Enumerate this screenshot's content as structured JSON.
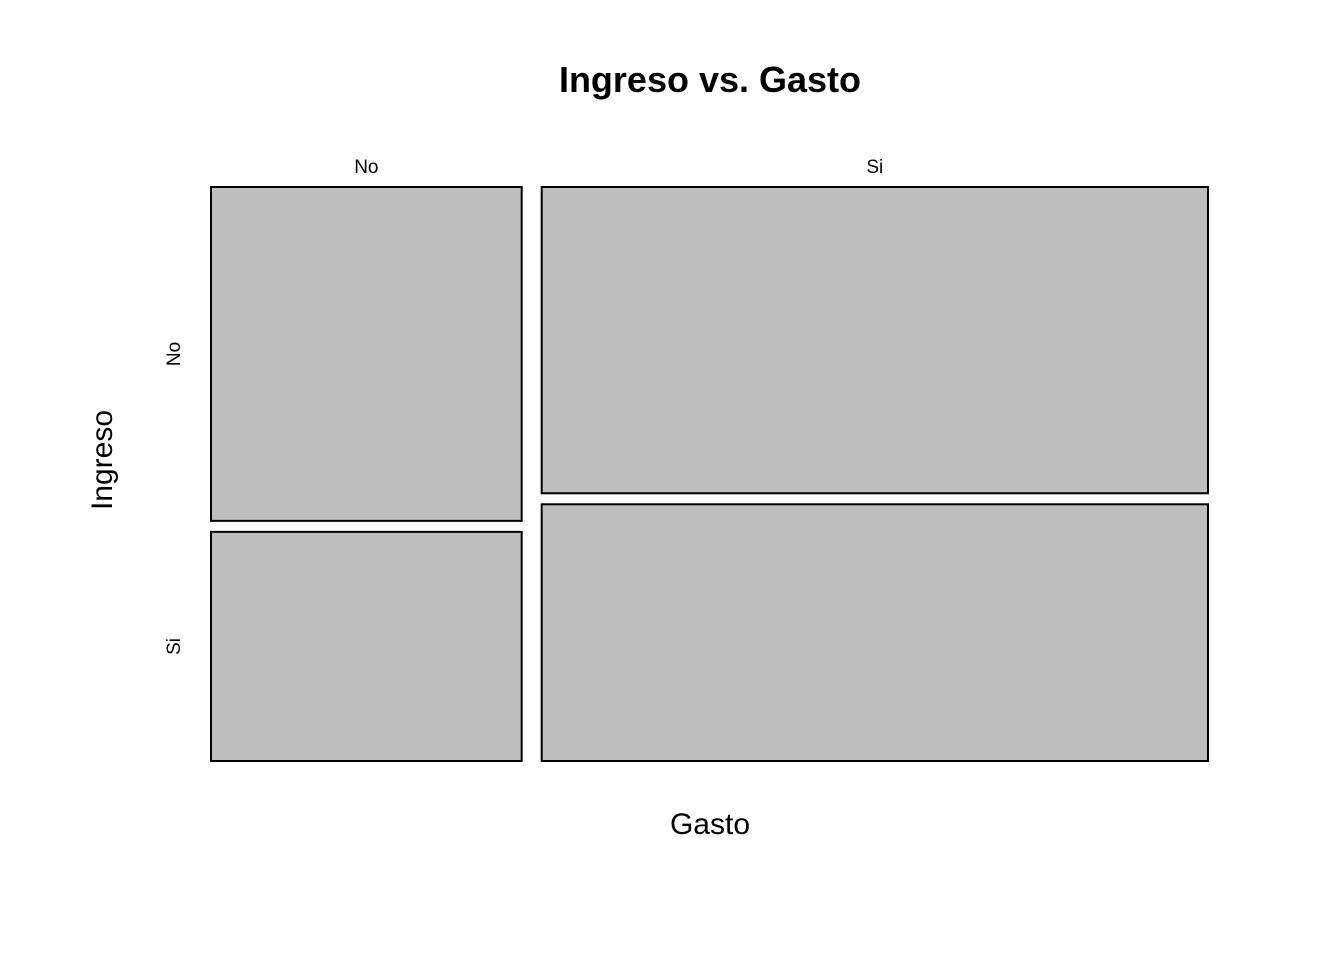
{
  "chart_data": {
    "type": "mosaic",
    "title": "Ingreso vs. Gasto",
    "xlabel": "Gasto",
    "ylabel": "Ingreso",
    "x_categories": [
      "No",
      "Si"
    ],
    "y_categories": [
      "No",
      "Si"
    ],
    "column_proportions": [
      0.318,
      0.682
    ],
    "cells": [
      {
        "x": "No",
        "y": "No",
        "proportion_within_column": 0.593
      },
      {
        "x": "No",
        "y": "Si",
        "proportion_within_column": 0.407
      },
      {
        "x": "Si",
        "y": "No",
        "proportion_within_column": 0.544
      },
      {
        "x": "Si",
        "y": "Si",
        "proportion_within_column": 0.456
      }
    ],
    "tile_color": "#bebebe",
    "border_color": "#000000"
  }
}
